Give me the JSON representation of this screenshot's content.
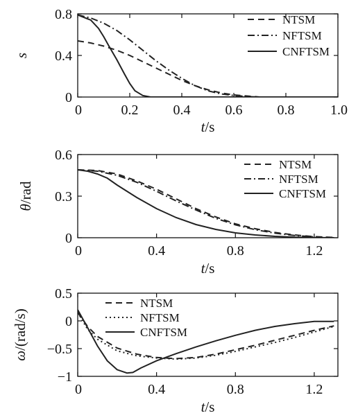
{
  "chart_data": [
    {
      "type": "line",
      "title": "",
      "xlabel": {
        "var": "t",
        "unit": "/s"
      },
      "ylabel": {
        "var": "s",
        "unit": ""
      },
      "xlim": [
        0,
        1.0
      ],
      "ylim": [
        0,
        0.8
      ],
      "xticks": [
        0,
        0.2,
        0.4,
        0.6,
        0.8,
        1.0
      ],
      "xtick_labels": [
        "0",
        "0.2",
        "0.4",
        "0.6",
        "0.8",
        "1.0"
      ],
      "yticks": [
        0,
        0.4,
        0.8
      ],
      "ytick_labels": [
        "0",
        "0.4",
        "0.8"
      ],
      "grid": false,
      "legend": "top-right",
      "series": [
        {
          "name": "NTSM",
          "dash": "9,6",
          "x": [
            0,
            0.05,
            0.1,
            0.15,
            0.2,
            0.25,
            0.3,
            0.35,
            0.4,
            0.45,
            0.5,
            0.55,
            0.6,
            0.65,
            0.7,
            1.0
          ],
          "y": [
            0.54,
            0.52,
            0.49,
            0.45,
            0.4,
            0.34,
            0.28,
            0.22,
            0.16,
            0.11,
            0.07,
            0.04,
            0.02,
            0.01,
            0.0,
            0.0
          ]
        },
        {
          "name": "NFTSM",
          "dash": "10,4,2,4",
          "x": [
            0,
            0.05,
            0.1,
            0.15,
            0.2,
            0.25,
            0.3,
            0.35,
            0.4,
            0.45,
            0.5,
            0.55,
            0.6,
            0.65,
            0.7,
            1.0
          ],
          "y": [
            0.79,
            0.76,
            0.71,
            0.64,
            0.55,
            0.45,
            0.35,
            0.26,
            0.18,
            0.11,
            0.06,
            0.03,
            0.015,
            0.005,
            0.0,
            0.0
          ]
        },
        {
          "name": "CNFTSM",
          "dash": "",
          "x": [
            0,
            0.05,
            0.08,
            0.1,
            0.12,
            0.15,
            0.18,
            0.2,
            0.22,
            0.25,
            0.28,
            0.3,
            1.0
          ],
          "y": [
            0.79,
            0.74,
            0.66,
            0.58,
            0.49,
            0.36,
            0.22,
            0.13,
            0.06,
            0.015,
            0.0,
            0.0,
            0.0
          ]
        }
      ]
    },
    {
      "type": "line",
      "title": "",
      "xlabel": {
        "var": "t",
        "unit": "/s"
      },
      "ylabel": {
        "var": "θ",
        "unit": "/rad"
      },
      "xlim": [
        0,
        1.32
      ],
      "ylim": [
        0,
        0.6
      ],
      "xticks": [
        0,
        0.4,
        0.8,
        1.2
      ],
      "xtick_labels": [
        "0",
        "0.4",
        "0.8",
        "1.2"
      ],
      "yticks": [
        0,
        0.3,
        0.6
      ],
      "ytick_labels": [
        "0",
        "0.3",
        "0.6"
      ],
      "grid": false,
      "legend": "top-right",
      "series": [
        {
          "name": "NTSM",
          "dash": "9,6",
          "x": [
            0,
            0.1,
            0.2,
            0.3,
            0.4,
            0.5,
            0.6,
            0.7,
            0.8,
            0.9,
            1.0,
            1.1,
            1.2,
            1.3
          ],
          "y": [
            0.49,
            0.485,
            0.46,
            0.41,
            0.35,
            0.28,
            0.21,
            0.15,
            0.1,
            0.065,
            0.038,
            0.02,
            0.008,
            0.002
          ]
        },
        {
          "name": "NFTSM",
          "dash": "10,4,2,4",
          "x": [
            0,
            0.1,
            0.2,
            0.3,
            0.4,
            0.5,
            0.6,
            0.7,
            0.8,
            0.9,
            1.0,
            1.1,
            1.2,
            1.3
          ],
          "y": [
            0.49,
            0.48,
            0.45,
            0.4,
            0.335,
            0.265,
            0.2,
            0.14,
            0.093,
            0.058,
            0.033,
            0.016,
            0.006,
            0.0
          ]
        },
        {
          "name": "CNFTSM",
          "dash": "",
          "x": [
            0,
            0.05,
            0.1,
            0.15,
            0.2,
            0.3,
            0.4,
            0.5,
            0.6,
            0.7,
            0.8,
            0.9,
            1.0,
            1.1,
            1.2,
            1.3
          ],
          "y": [
            0.49,
            0.48,
            0.46,
            0.43,
            0.38,
            0.29,
            0.21,
            0.145,
            0.095,
            0.06,
            0.035,
            0.02,
            0.01,
            0.004,
            0.001,
            0.0
          ]
        }
      ]
    },
    {
      "type": "line",
      "title": "",
      "xlabel": {
        "var": "t",
        "unit": "/s"
      },
      "ylabel": {
        "var": "ω",
        "unit": "/(rad/s)"
      },
      "xlim": [
        0,
        1.32
      ],
      "ylim": [
        -1,
        0.5
      ],
      "xticks": [
        0,
        0.4,
        0.8,
        1.2
      ],
      "xtick_labels": [
        "0",
        "0.4",
        "0.8",
        "1.2"
      ],
      "yticks": [
        -1,
        -0.5,
        0,
        0.5
      ],
      "ytick_labels": [
        "−1",
        "−0.5",
        "0",
        "0.5"
      ],
      "grid": false,
      "legend": "top-left",
      "series": [
        {
          "name": "NTSM",
          "dash": "9,6",
          "x": [
            0,
            0.05,
            0.1,
            0.2,
            0.3,
            0.4,
            0.5,
            0.6,
            0.7,
            0.8,
            0.9,
            1.0,
            1.1,
            1.2,
            1.3
          ],
          "y": [
            0.15,
            -0.1,
            -0.28,
            -0.49,
            -0.6,
            -0.66,
            -0.68,
            -0.66,
            -0.6,
            -0.52,
            -0.44,
            -0.35,
            -0.26,
            -0.17,
            -0.09
          ]
        },
        {
          "name": "NFTSM",
          "dash": "2,4",
          "x": [
            0,
            0.05,
            0.1,
            0.2,
            0.3,
            0.4,
            0.5,
            0.6,
            0.7,
            0.8,
            0.9,
            1.0,
            1.1,
            1.2,
            1.3
          ],
          "y": [
            0.15,
            -0.15,
            -0.33,
            -0.54,
            -0.63,
            -0.67,
            -0.69,
            -0.67,
            -0.62,
            -0.55,
            -0.47,
            -0.39,
            -0.3,
            -0.2,
            -0.1
          ]
        },
        {
          "name": "CNFTSM",
          "dash": "",
          "x": [
            0,
            0.05,
            0.1,
            0.15,
            0.2,
            0.25,
            0.28,
            0.32,
            0.4,
            0.5,
            0.6,
            0.7,
            0.8,
            0.9,
            1.0,
            1.1,
            1.2,
            1.3
          ],
          "y": [
            0.2,
            -0.12,
            -0.45,
            -0.72,
            -0.88,
            -0.94,
            -0.93,
            -0.85,
            -0.72,
            -0.59,
            -0.47,
            -0.36,
            -0.26,
            -0.17,
            -0.1,
            -0.05,
            -0.01,
            -0.01
          ]
        }
      ]
    }
  ]
}
